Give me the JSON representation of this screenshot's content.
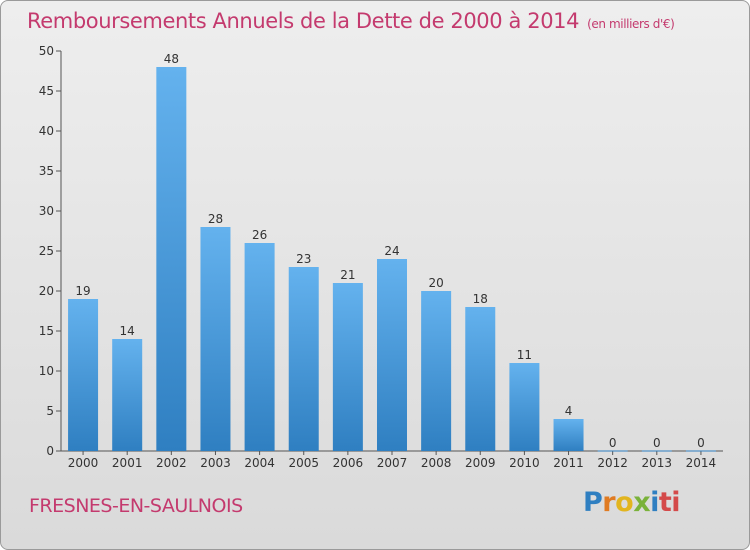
{
  "header": {
    "title": "Remboursements Annuels de la Dette de 2000 à 2014",
    "unit": "(en milliers d'€)"
  },
  "footer": {
    "commune": "FRESNES-EN-SAULNOIS",
    "logo_letters": [
      "P",
      "r",
      "o",
      "x",
      "i",
      "ti"
    ]
  },
  "colors": {
    "title": "#c43a6e",
    "bar_top": "#64b2ee",
    "bar_bottom": "#2f7fc1"
  },
  "chart_data": {
    "type": "bar",
    "title": "Remboursements Annuels de la Dette de 2000 à 2014",
    "xlabel": "",
    "ylabel": "",
    "categories": [
      "2000",
      "2001",
      "2002",
      "2003",
      "2004",
      "2005",
      "2006",
      "2007",
      "2008",
      "2009",
      "2010",
      "2011",
      "2012",
      "2013",
      "2014"
    ],
    "values": [
      19,
      14,
      48,
      28,
      26,
      23,
      21,
      24,
      20,
      18,
      11,
      4,
      0,
      0,
      0
    ],
    "ylim": [
      0,
      50
    ],
    "yticks": [
      0,
      5,
      10,
      15,
      20,
      25,
      30,
      35,
      40,
      45,
      50
    ],
    "grid": false,
    "legend": "none"
  }
}
